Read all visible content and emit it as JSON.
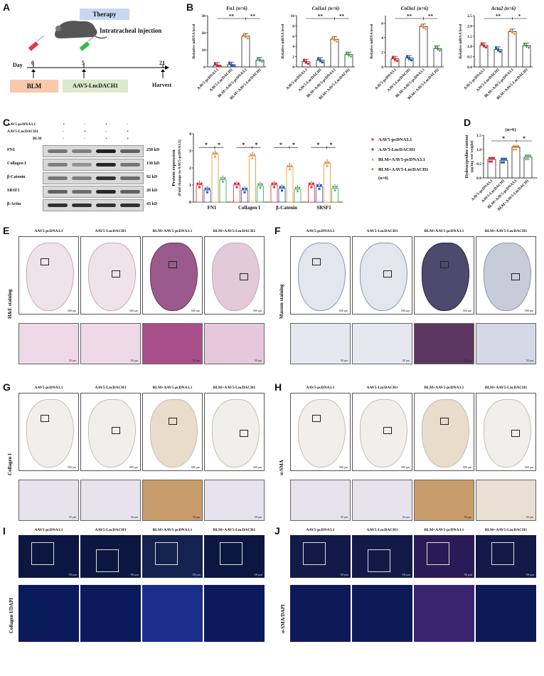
{
  "panels": {
    "A": "A",
    "B": "B",
    "C": "C",
    "D": "D",
    "E": "E",
    "F": "F",
    "G": "G",
    "H": "H",
    "I": "I",
    "J": "J"
  },
  "panelA": {
    "therapy": "Therapy",
    "injection": "Intratracheal injection",
    "day": "Day",
    "ticks": [
      "0",
      "5",
      "21"
    ],
    "bleo": "BLM",
    "aav": "AAV5-LncDACH1",
    "harvest": "Harvest"
  },
  "panelB": {
    "ylabel": "Relative mRNA level",
    "groups": [
      "AAV5-pcDNA3.1",
      "AAV5-LncDACH1",
      "BLM+AAV5-pcDNA3.1",
      "BLM+AAV5-LncDACH1"
    ],
    "sig": "**",
    "sig_single": "*",
    "charts": [
      {
        "title": "Fn1 (n=6)",
        "yticks": [
          "0",
          "10",
          "20",
          "30"
        ]
      },
      {
        "title": "Col1a1 (n=6)",
        "yticks": [
          "0",
          "2",
          "4",
          "6",
          "8",
          "10"
        ]
      },
      {
        "title": "Col3a1 (n=6)",
        "yticks": [
          "0",
          "2",
          "4",
          "6"
        ]
      },
      {
        "title": "Acta2 (n=6)",
        "yticks": [
          "0.0",
          "0.5",
          "1.0",
          "1.5",
          "2.0",
          "2.5"
        ]
      }
    ]
  },
  "chart_data": [
    {
      "type": "bar",
      "title": "Fn1 (n=6)",
      "ylabel": "Relative mRNA level",
      "categories": [
        "AAV5-pcDNA3.1",
        "AAV5-LncDACH1",
        "BLM+AAV5-pcDNA3.1",
        "BLM+AAV5-LncDACH1"
      ],
      "values": [
        1.0,
        1.3,
        18,
        4
      ],
      "ylim": [
        0,
        30
      ]
    },
    {
      "type": "bar",
      "title": "Col1a1 (n=6)",
      "ylabel": "Relative mRNA level",
      "categories": [
        "AAV5-pcDNA3.1",
        "AAV5-LncDACH1",
        "BLM+AAV5-pcDNA3.1",
        "BLM+AAV5-LncDACH1"
      ],
      "values": [
        1.0,
        1.3,
        5.4,
        2.4
      ],
      "ylim": [
        0,
        10
      ]
    },
    {
      "type": "bar",
      "title": "Col3a1 (n=6)",
      "ylabel": "Relative mRNA level",
      "categories": [
        "AAV5-pcDNA3.1",
        "AAV5-LncDACH1",
        "BLM+AAV5-pcDNA3.1",
        "BLM+AAV5-LncDACH1"
      ],
      "values": [
        1.1,
        1.2,
        5.5,
        2.5
      ],
      "ylim": [
        0,
        7
      ]
    },
    {
      "type": "bar",
      "title": "Acta2 (n=6)",
      "ylabel": "Relative mRNA level",
      "categories": [
        "AAV5-pcDNA3.1",
        "AAV5-LncDACH1",
        "BLM+AAV5-pcDNA3.1",
        "BLM+AAV5-LncDACH1"
      ],
      "values": [
        1.05,
        0.85,
        1.72,
        1.03
      ],
      "ylim": [
        0,
        2.5
      ]
    },
    {
      "type": "bar",
      "title": "",
      "ylabel": "Protein expression (Fold change to AAV5-pcDNA3.1)",
      "categories": [
        "FN1",
        "Collagen I",
        "β-Catenin",
        "SRSF1"
      ],
      "series": [
        {
          "name": "AAV5-pcDNA3.1",
          "values": [
            1,
            1,
            1,
            1
          ]
        },
        {
          "name": "AAV5-LncDACH1",
          "values": [
            0.7,
            0.7,
            0.8,
            0.9
          ]
        },
        {
          "name": "BLM+AAV5-pcDNA3.1",
          "values": [
            2.8,
            2.7,
            2.05,
            2.25
          ]
        },
        {
          "name": "BLM+AAV5-LncDACH1",
          "values": [
            1.3,
            0.95,
            0.75,
            0.8
          ]
        }
      ],
      "ylim": [
        0,
        4
      ]
    },
    {
      "type": "bar",
      "title": "(n=6)",
      "ylabel": "Hydroxyproline content (μg/mg wet weight)",
      "categories": [
        "AAV5-pcDNA3.1",
        "AAV5-LncDACH1",
        "BLM+AAV5-pcDNA3.1",
        "BLM+AAV5-LncDACH1"
      ],
      "values": [
        0.65,
        0.62,
        1.08,
        0.73
      ],
      "ylim": [
        0,
        1.5
      ]
    }
  ],
  "panelC": {
    "row_labels": [
      "AAV5-pcDNA3.1",
      "AAV5-LncDACH1",
      "BLM"
    ],
    "signs": [
      [
        "+",
        "-",
        "+",
        "-"
      ],
      [
        "-",
        "+",
        "-",
        "+"
      ],
      [
        "-",
        "-",
        "+",
        "+"
      ]
    ],
    "blots": [
      {
        "name": "FN1",
        "kd": "250 kD"
      },
      {
        "name": "Collagen I",
        "kd": "130 kD"
      },
      {
        "name": "β-Catenin",
        "kd": "92 kD"
      },
      {
        "name": "SRSF1",
        "kd": "28 kD"
      },
      {
        "name": "β-Actin",
        "kd": "43 kD"
      }
    ],
    "ylabel1": "Protein expression",
    "ylabel2": "(Fold change to AAV5-pcDNA3.1)",
    "yticks": [
      "0",
      "1",
      "2",
      "3",
      "4"
    ],
    "cats": [
      "FN1",
      "Collagen I",
      "β-Catenin",
      "SRSF1"
    ],
    "legend": [
      "AAV5-pcDNA3.1",
      "AAV5-LncDACH1",
      "BLM+AAV5-pcDNA3.1",
      "BLM+AAV5-LncDACH1"
    ],
    "n": "(n=4)",
    "sig": "*"
  },
  "panelD": {
    "n": "(n=6)",
    "ylabel1": "Hydroxyproline content",
    "ylabel2": "(μg/mg wet weight)",
    "yticks": [
      "0.0",
      "0.5",
      "1.0",
      "1.5"
    ],
    "sig": "*"
  },
  "groups4": [
    "AAV5-pcDNA3.1",
    "AAV5-LncDACH1",
    "BLM+AAV5-pcDNA3.1",
    "BLM+AAV5-LncDACH1"
  ],
  "stains": {
    "E": "H&E staining",
    "F": "Masson staining",
    "G": "Collagen I",
    "H": "α-SMA",
    "I": "Collagen I/DAPI",
    "J": "α-SMA/DAPI"
  },
  "scale": {
    "big": "500 μm",
    "small": "50 μm"
  },
  "colors": {
    "bar1": "#e8232a",
    "bar2": "#1f5fbf",
    "bar3": "#f08a24",
    "bar4": "#2aa84a"
  }
}
